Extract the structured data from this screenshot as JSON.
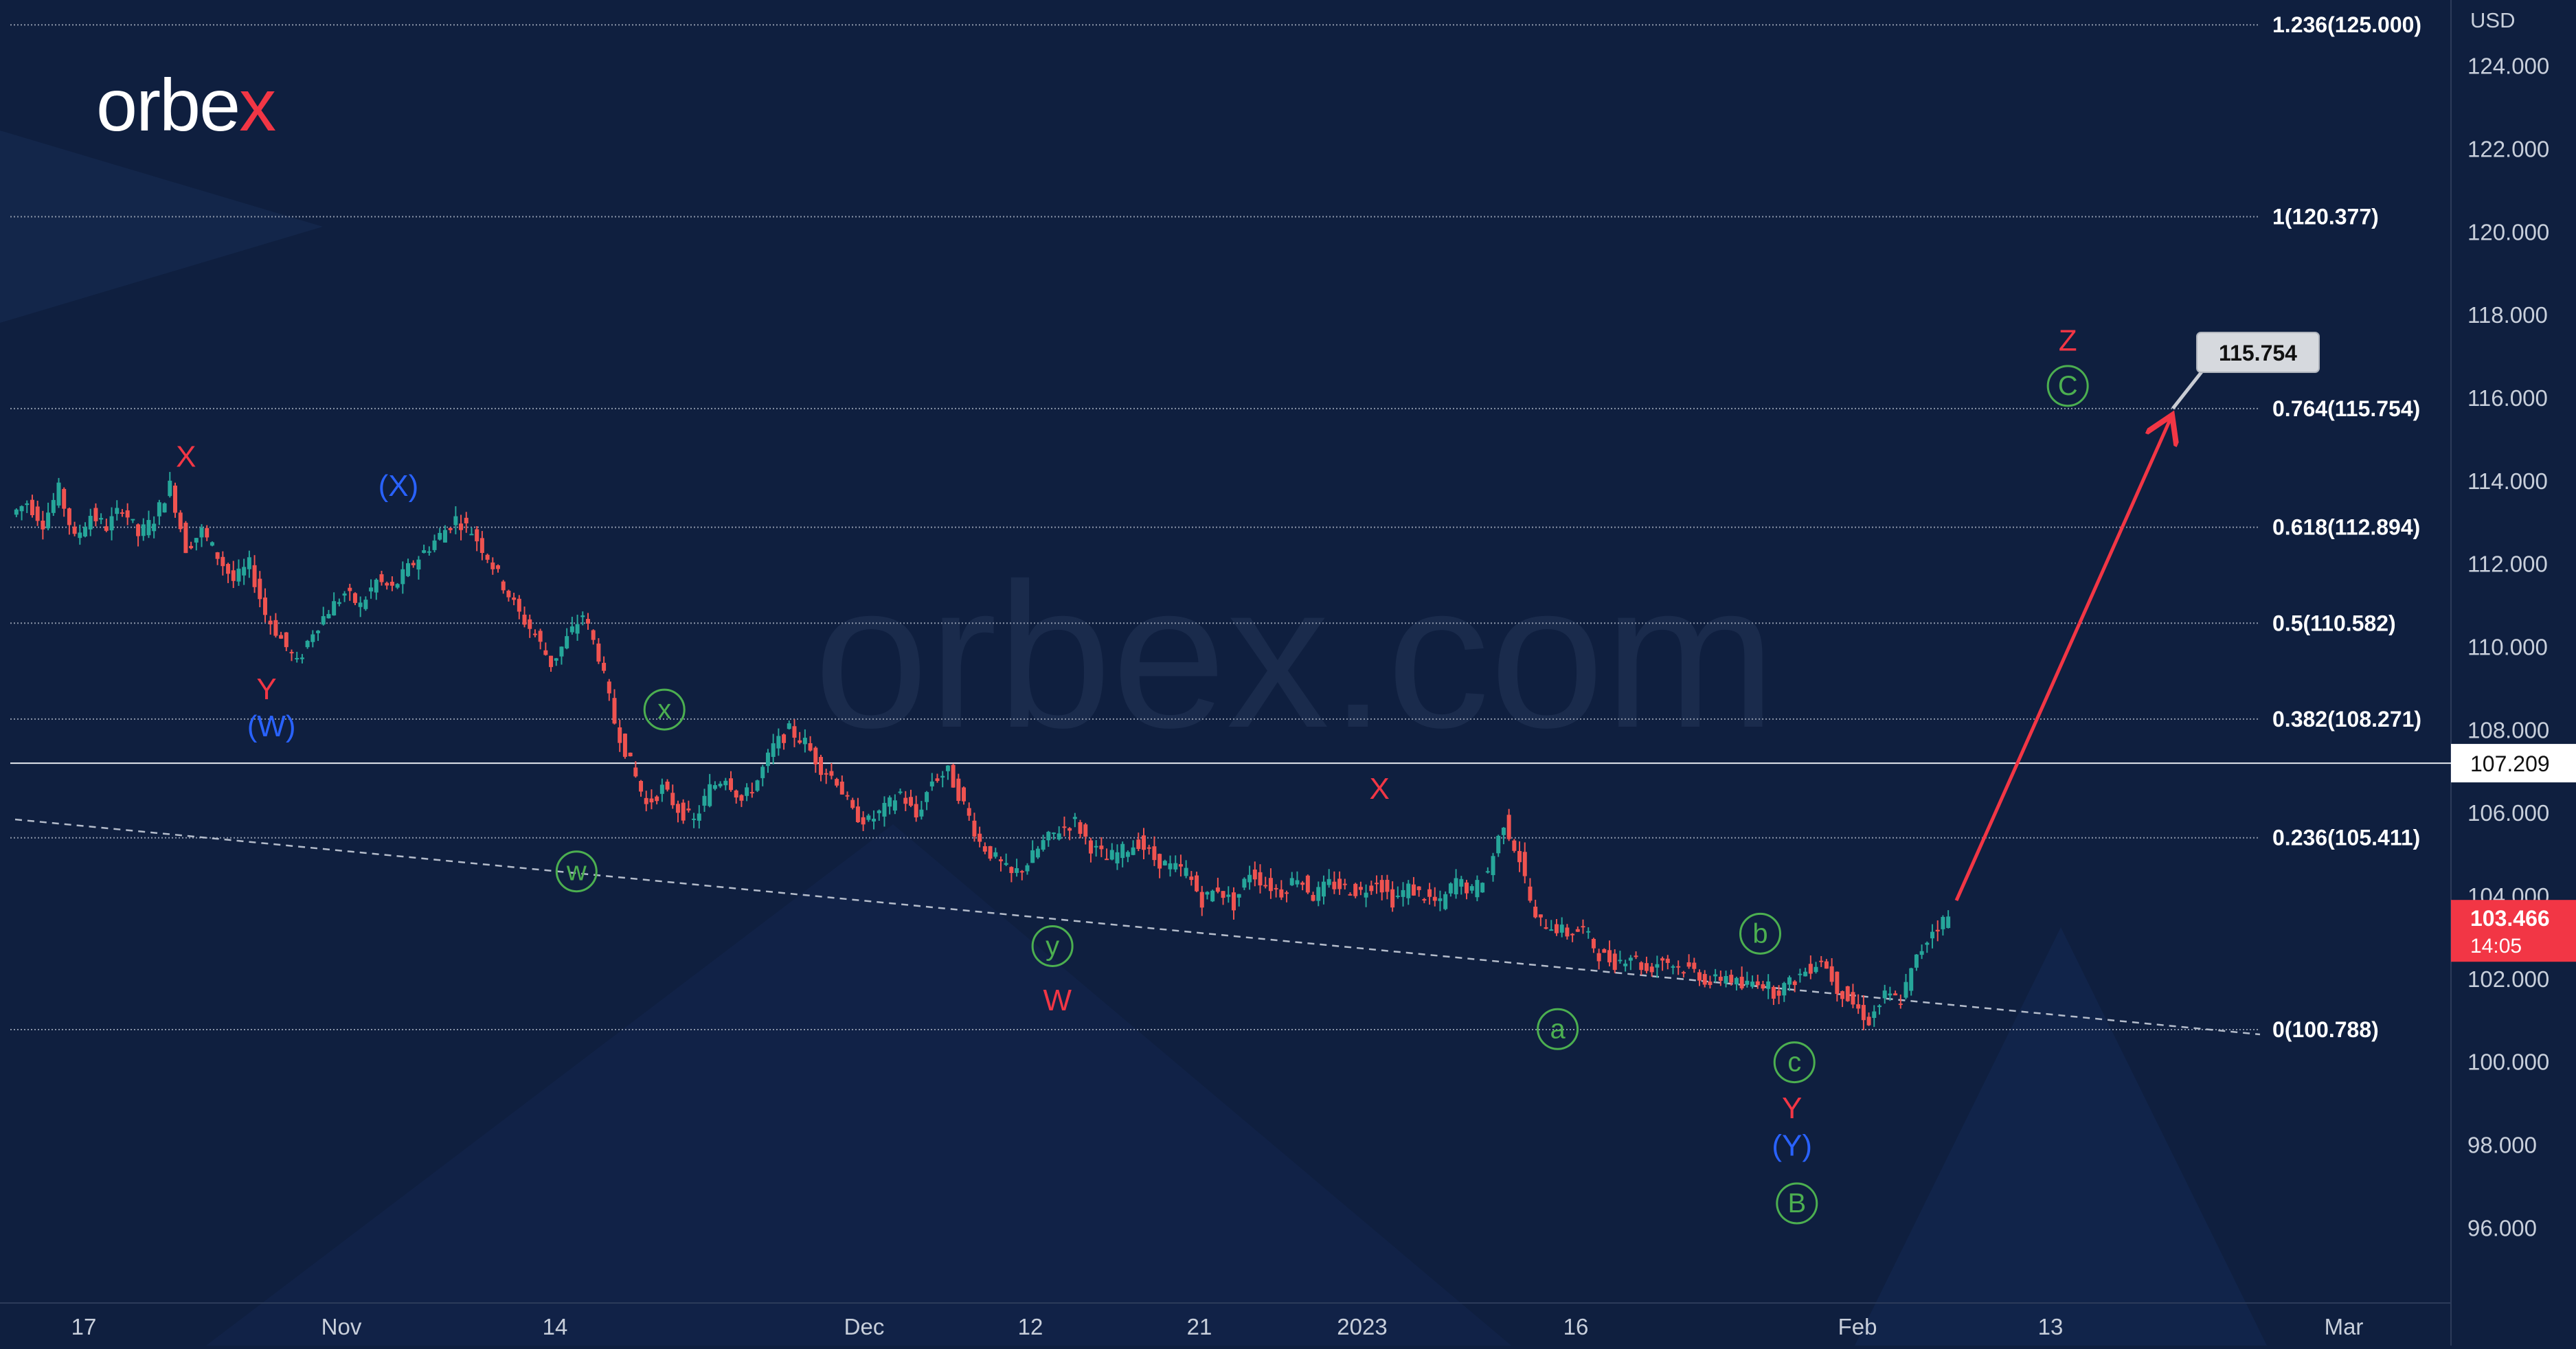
{
  "brand": {
    "logo_text_main": "orbe",
    "logo_text_accent": "x",
    "watermark": "orbex.com"
  },
  "colors": {
    "background": "#0f1f3f",
    "fib_line": "#8b95a8",
    "candle_up": "#26a69a",
    "candle_down": "#ef5350",
    "label_red": "#f23645",
    "label_blue": "#2962ff",
    "label_green": "#4caf50",
    "projection_arrow": "#f23645",
    "current_price_tag": "#f23645",
    "level_tag": "#ffffff"
  },
  "chart_data": {
    "type": "candlestick",
    "currency": "USD",
    "ylim": [
      94.2,
      125.6
    ],
    "y_ticks": [
      "96.000",
      "98.000",
      "100.000",
      "102.000",
      "104.000",
      "106.000",
      "108.000",
      "110.000",
      "112.000",
      "114.000",
      "116.000",
      "118.000",
      "120.000",
      "122.000",
      "124.000"
    ],
    "x_ticks": [
      "17",
      "Nov",
      "14",
      "Dec",
      "12",
      "21",
      "2023",
      "16",
      "Feb",
      "13",
      "Mar"
    ],
    "fib_levels": [
      {
        "ratio": "1.236",
        "value": 125.0,
        "label": "1.236(125.000)"
      },
      {
        "ratio": "1",
        "value": 120.377,
        "label": "1(120.377)"
      },
      {
        "ratio": "0.764",
        "value": 115.754,
        "label": "0.764(115.754)"
      },
      {
        "ratio": "0.618",
        "value": 112.894,
        "label": "0.618(112.894)"
      },
      {
        "ratio": "0.5",
        "value": 110.582,
        "label": "0.5(110.582)"
      },
      {
        "ratio": "0.382",
        "value": 108.271,
        "label": "0.382(108.271)"
      },
      {
        "ratio": "0.236",
        "value": 105.411,
        "label": "0.236(105.411)"
      },
      {
        "ratio": "0",
        "value": 100.788,
        "label": "0(100.788)"
      }
    ],
    "horizontal_level": {
      "value": 107.209,
      "label": "107.209"
    },
    "current_price": {
      "value": 103.466,
      "label": "103.466",
      "countdown": "14:05"
    },
    "target_callout": {
      "value": 115.754,
      "label": "115.754"
    },
    "projection": {
      "from": 103.9,
      "to": 115.754
    },
    "price_path": [
      113.2,
      113.5,
      113.0,
      113.8,
      112.6,
      113.2,
      112.9,
      113.4,
      112.7,
      113.1,
      113.9,
      112.4,
      112.8,
      112.2,
      111.6,
      112.0,
      110.8,
      110.2,
      109.6,
      110.4,
      110.9,
      111.3,
      111.0,
      111.6,
      111.4,
      111.9,
      112.3,
      112.7,
      113.1,
      112.8,
      112.2,
      111.5,
      110.8,
      110.3,
      109.6,
      110.2,
      110.8,
      109.8,
      108.2,
      107.2,
      106.2,
      106.6,
      106.1,
      105.8,
      106.6,
      106.9,
      106.3,
      106.8,
      107.6,
      108.0,
      107.7,
      107.1,
      106.8,
      106.0,
      105.8,
      106.1,
      106.5,
      105.9,
      106.8,
      107.0,
      106.2,
      105.3,
      104.9,
      104.5,
      104.8,
      105.3,
      105.6,
      105.8,
      105.2,
      104.9,
      105.1,
      105.3,
      104.9,
      104.7,
      104.6,
      103.9,
      104.2,
      103.8,
      104.6,
      104.3,
      104.1,
      104.5,
      104.0,
      104.3,
      104.2,
      104.1,
      104.4,
      103.9,
      104.2,
      104.0,
      103.8,
      104.4,
      104.1,
      104.6,
      105.8,
      104.9,
      103.4,
      103.3,
      103.1,
      103.2,
      102.6,
      102.4,
      102.6,
      102.2,
      102.5,
      102.3,
      102.2,
      101.9,
      102.1,
      101.8,
      102.0,
      101.7,
      101.9,
      102.2,
      102.5,
      101.8,
      101.4,
      101.0,
      101.6,
      101.5,
      102.5,
      103.2,
      103.5
    ],
    "wave_labels": [
      {
        "text": "X",
        "style": "plain",
        "color": "red",
        "value": 114.6,
        "pos": 0.072
      },
      {
        "text": "Y",
        "style": "plain",
        "color": "red",
        "value": 109.0,
        "pos": 0.105
      },
      {
        "text": "(W)",
        "style": "plain",
        "color": "blue",
        "value": 108.1,
        "pos": 0.107
      },
      {
        "text": "(X)",
        "style": "plain",
        "color": "blue",
        "value": 113.9,
        "pos": 0.159
      },
      {
        "text": "x",
        "style": "circled",
        "color": "green",
        "value": 108.5,
        "pos": 0.268
      },
      {
        "text": "w",
        "style": "circled",
        "color": "green",
        "value": 104.6,
        "pos": 0.232
      },
      {
        "text": "y",
        "style": "circled",
        "color": "green",
        "value": 102.8,
        "pos": 0.427
      },
      {
        "text": "W",
        "style": "plain",
        "color": "red",
        "value": 101.5,
        "pos": 0.429
      },
      {
        "text": "X",
        "style": "plain",
        "color": "red",
        "value": 106.6,
        "pos": 0.561
      },
      {
        "text": "b",
        "style": "circled",
        "color": "green",
        "value": 103.1,
        "pos": 0.717
      },
      {
        "text": "a",
        "style": "circled",
        "color": "green",
        "value": 100.8,
        "pos": 0.634
      },
      {
        "text": "c",
        "style": "circled",
        "color": "green",
        "value": 100.0,
        "pos": 0.731
      },
      {
        "text": "Y",
        "style": "plain",
        "color": "red",
        "value": 98.9,
        "pos": 0.73
      },
      {
        "text": "(Y)",
        "style": "plain",
        "color": "blue",
        "value": 98.0,
        "pos": 0.73
      },
      {
        "text": "B",
        "style": "circled",
        "color": "green",
        "value": 96.6,
        "pos": 0.732
      },
      {
        "text": "Z",
        "style": "plain",
        "color": "red",
        "value": 117.4,
        "pos": 0.843
      },
      {
        "text": "C",
        "style": "circled",
        "color": "green",
        "value": 116.3,
        "pos": 0.843
      }
    ]
  }
}
